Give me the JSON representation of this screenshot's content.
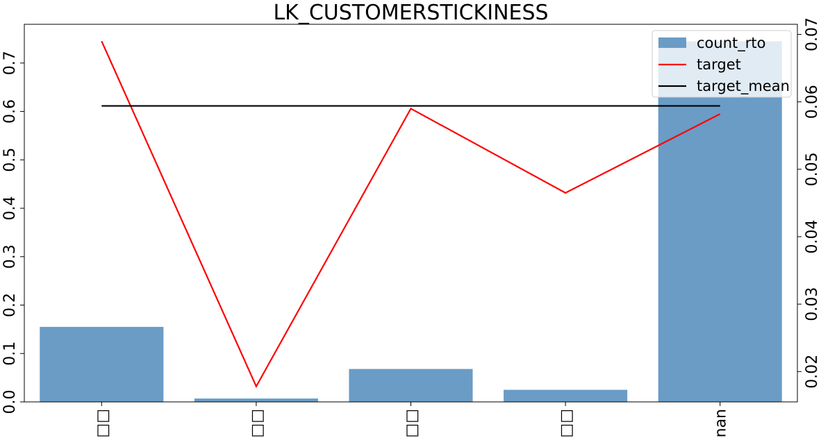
{
  "chart_data": {
    "type": "bar",
    "title": "LK_CUSTOMERSTICKINESS",
    "xlabel": "",
    "ylabel": "",
    "categories": [
      "□□",
      "□□",
      "□□",
      "□□",
      "nan"
    ],
    "series": [
      {
        "name": "count_rto",
        "type": "bar",
        "axis": "left",
        "color": "#6a9cc6",
        "values": [
          0.155,
          0.007,
          0.068,
          0.025,
          0.745
        ]
      },
      {
        "name": "target",
        "type": "line",
        "axis": "right",
        "color": "#ff0000",
        "values": [
          0.069,
          0.0178,
          0.059,
          0.0465,
          0.0582
        ]
      },
      {
        "name": "target_mean",
        "type": "line",
        "axis": "right",
        "color": "#000000",
        "values": [
          0.0594,
          0.0594,
          0.0594,
          0.0594,
          0.0594
        ]
      }
    ],
    "ylim": [
      0,
      0.78
    ],
    "y_ticks": [
      "0.0",
      "0.1",
      "0.2",
      "0.3",
      "0.4",
      "0.5",
      "0.6",
      "0.7"
    ],
    "y2lim": [
      0.0155,
      0.0715
    ],
    "y2_ticks": [
      "0.02",
      "0.03",
      "0.04",
      "0.05",
      "0.06",
      "0.07"
    ],
    "grid": false,
    "legend_position": "top-right"
  }
}
